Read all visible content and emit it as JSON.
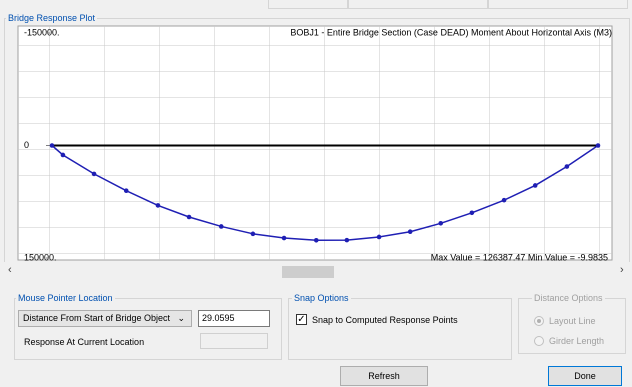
{
  "window": {
    "group_title": "Bridge Response Plot",
    "chart_data": {
      "type": "line",
      "title": "BOBJ1 - Entire Bridge Section   (Case DEAD)   Moment About Horizontal Axis  (M3)",
      "annotation": "Max Value = 126387.47   Min Value = -9.9835",
      "x": [
        0,
        0.02,
        0.077,
        0.136,
        0.194,
        0.251,
        0.31,
        0.368,
        0.425,
        0.484,
        0.54,
        0.599,
        0.656,
        0.712,
        0.769,
        0.828,
        0.885,
        0.943,
        1
      ],
      "series": [
        {
          "name": "M3",
          "color": "#1f1fb4",
          "values": [
            0,
            12617,
            37850,
            60280,
            79907,
            95327,
            107944,
            117757,
            123364,
            126387,
            126168,
            121963,
            114953,
            103738,
            89720,
            72897,
            53271,
            28037,
            0
          ]
        }
      ],
      "xlim": [
        0,
        1
      ],
      "ylim": [
        -150000,
        150000
      ],
      "y_inverted": true,
      "yticks": [
        {
          "value": -150000,
          "label": "-150000."
        },
        0,
        {
          "value": 150000,
          "label": "150000."
        }
      ],
      "grid": true
    },
    "mouse_pointer": {
      "title": "Mouse Pointer Location",
      "dropdown": "Distance From Start of Bridge Object",
      "value": "29.0595",
      "response_label": "Response At Current Location"
    },
    "snap_options": {
      "title": "Snap Options",
      "checkbox_label": "Snap to Computed Response Points",
      "checked": true
    },
    "distance_options": {
      "title": "Distance Options",
      "options": [
        "Layout Line",
        "Girder Length"
      ],
      "selected": 0
    },
    "buttons": {
      "refresh": "Refresh",
      "done": "Done"
    }
  }
}
